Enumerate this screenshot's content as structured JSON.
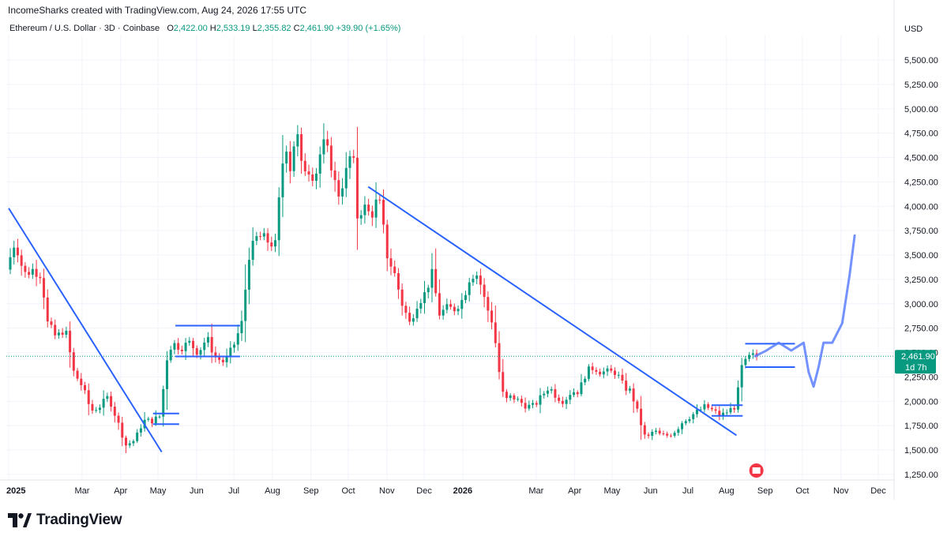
{
  "header": {
    "attribution": "IncomeSharks created with TradingView.com, Aug 24, 2026 17:55 UTC"
  },
  "legend": {
    "symbol": "Ethereum / U.S. Dollar · 3D · Coinbase",
    "o_label": "O",
    "o_value": "2,422.00",
    "h_label": "H",
    "h_value": "2,533.19",
    "l_label": "L",
    "l_value": "2,355.82",
    "c_label": "C",
    "c_value": "2,461.90",
    "change": "+39.90 (+1.65%)"
  },
  "price_axis": {
    "currency": "USD",
    "last_price": "2,461.90",
    "countdown": "1d 7h"
  },
  "footer": {
    "brand": "TradingView"
  },
  "colors": {
    "up": "#089981",
    "down": "#f23645",
    "drawing": "#2962ff",
    "grid": "#f0f3fa",
    "text": "#131722"
  },
  "chart_data": {
    "type": "candlestick",
    "symbol": "ETHUSD",
    "interval": "3D",
    "y_ticks": [
      1250,
      1500,
      1750,
      2000,
      2250,
      2500,
      2750,
      3000,
      3250,
      3500,
      3750,
      4000,
      4250,
      4500,
      4750,
      5000,
      5250,
      5500
    ],
    "y_tick_labels": [
      "1,250.00",
      "1,500.00",
      "1,750.00",
      "2,000.00",
      "2,250.00",
      "2,500.00",
      "2,750.00",
      "3,000.00",
      "3,250.00",
      "3,500.00",
      "3,750.00",
      "4,000.00",
      "4,250.00",
      "4,500.00",
      "4,750.00",
      "5,000.00",
      "5,250.00",
      "5,500.00"
    ],
    "x_ticks": [
      {
        "label": "2025",
        "date": "2025-01-01",
        "bold": true
      },
      {
        "label": "Mar",
        "date": "2025-03-01"
      },
      {
        "label": "Apr",
        "date": "2025-04-01"
      },
      {
        "label": "May",
        "date": "2025-05-01"
      },
      {
        "label": "Jun",
        "date": "2025-06-01"
      },
      {
        "label": "Jul",
        "date": "2025-07-01"
      },
      {
        "label": "Aug",
        "date": "2025-08-01"
      },
      {
        "label": "Sep",
        "date": "2025-09-01"
      },
      {
        "label": "Oct",
        "date": "2025-10-01"
      },
      {
        "label": "Nov",
        "date": "2025-11-01"
      },
      {
        "label": "Dec",
        "date": "2025-12-01"
      },
      {
        "label": "2026",
        "date": "2026-01-01",
        "bold": true
      },
      {
        "label": "Mar",
        "date": "2026-03-01"
      },
      {
        "label": "Apr",
        "date": "2026-04-01"
      },
      {
        "label": "May",
        "date": "2026-05-01"
      },
      {
        "label": "Jun",
        "date": "2026-06-01"
      },
      {
        "label": "Jul",
        "date": "2026-07-01"
      },
      {
        "label": "Aug",
        "date": "2026-08-01"
      },
      {
        "label": "Sep",
        "date": "2026-09-01"
      },
      {
        "label": "Oct",
        "date": "2026-10-01"
      },
      {
        "label": "Nov",
        "date": "2026-11-01"
      },
      {
        "label": "Dec",
        "date": "2026-12-01"
      }
    ],
    "price_path": [
      [
        "2025-01-01",
        3350
      ],
      [
        "2025-01-08",
        3650
      ],
      [
        "2025-01-15",
        3300
      ],
      [
        "2025-01-22",
        3350
      ],
      [
        "2025-01-29",
        3300
      ],
      [
        "2025-02-03",
        2800
      ],
      [
        "2025-02-10",
        2650
      ],
      [
        "2025-02-17",
        2750
      ],
      [
        "2025-02-24",
        2300
      ],
      [
        "2025-03-03",
        2150
      ],
      [
        "2025-03-10",
        1900
      ],
      [
        "2025-03-17",
        1950
      ],
      [
        "2025-03-24",
        2050
      ],
      [
        "2025-03-31",
        1800
      ],
      [
        "2025-04-07",
        1550
      ],
      [
        "2025-04-14",
        1600
      ],
      [
        "2025-04-21",
        1800
      ],
      [
        "2025-04-28",
        1800
      ],
      [
        "2025-05-05",
        1850
      ],
      [
        "2025-05-09",
        2400
      ],
      [
        "2025-05-14",
        2600
      ],
      [
        "2025-05-21",
        2550
      ],
      [
        "2025-05-28",
        2600
      ],
      [
        "2025-06-04",
        2500
      ],
      [
        "2025-06-11",
        2650
      ],
      [
        "2025-06-18",
        2450
      ],
      [
        "2025-06-25",
        2400
      ],
      [
        "2025-07-02",
        2550
      ],
      [
        "2025-07-09",
        2800
      ],
      [
        "2025-07-15",
        3500
      ],
      [
        "2025-07-22",
        3700
      ],
      [
        "2025-07-29",
        3650
      ],
      [
        "2025-08-05",
        3600
      ],
      [
        "2025-08-09",
        4200
      ],
      [
        "2025-08-13",
        4700
      ],
      [
        "2025-08-17",
        4400
      ],
      [
        "2025-08-22",
        4800
      ],
      [
        "2025-08-26",
        4400
      ],
      [
        "2025-08-31",
        4400
      ],
      [
        "2025-09-06",
        4300
      ],
      [
        "2025-09-12",
        4650
      ],
      [
        "2025-09-18",
        4500
      ],
      [
        "2025-09-24",
        4100
      ],
      [
        "2025-09-30",
        4300
      ],
      [
        "2025-10-06",
        4600
      ],
      [
        "2025-10-10",
        3900
      ],
      [
        "2025-10-15",
        4000
      ],
      [
        "2025-10-21",
        3900
      ],
      [
        "2025-10-27",
        4100
      ],
      [
        "2025-11-03",
        3500
      ],
      [
        "2025-11-09",
        3300
      ],
      [
        "2025-11-15",
        3000
      ],
      [
        "2025-11-21",
        2800
      ],
      [
        "2025-11-27",
        3000
      ],
      [
        "2025-12-03",
        3100
      ],
      [
        "2025-12-09",
        3300
      ],
      [
        "2025-12-15",
        2900
      ],
      [
        "2025-12-21",
        2950
      ],
      [
        "2025-12-27",
        2950
      ],
      [
        "2026-01-03",
        3050
      ],
      [
        "2026-01-09",
        3300
      ],
      [
        "2026-01-15",
        3300
      ],
      [
        "2026-01-21",
        3000
      ],
      [
        "2026-01-27",
        2800
      ],
      [
        "2026-02-01",
        2300
      ],
      [
        "2026-02-05",
        2000
      ],
      [
        "2026-02-11",
        2050
      ],
      [
        "2026-02-17",
        2000
      ],
      [
        "2026-02-23",
        1950
      ],
      [
        "2026-03-01",
        1950
      ],
      [
        "2026-03-07",
        2050
      ],
      [
        "2026-03-13",
        2150
      ],
      [
        "2026-03-19",
        2050
      ],
      [
        "2026-03-25",
        2000
      ],
      [
        "2026-03-31",
        2100
      ],
      [
        "2026-04-06",
        2100
      ],
      [
        "2026-04-12",
        2300
      ],
      [
        "2026-04-18",
        2350
      ],
      [
        "2026-04-24",
        2300
      ],
      [
        "2026-04-30",
        2300
      ],
      [
        "2026-05-06",
        2300
      ],
      [
        "2026-05-12",
        2150
      ],
      [
        "2026-05-18",
        2100
      ],
      [
        "2026-05-24",
        1850
      ],
      [
        "2026-05-30",
        1600
      ],
      [
        "2026-06-05",
        1700
      ],
      [
        "2026-06-11",
        1650
      ],
      [
        "2026-06-17",
        1650
      ],
      [
        "2026-06-23",
        1700
      ],
      [
        "2026-06-29",
        1800
      ],
      [
        "2026-07-05",
        1850
      ],
      [
        "2026-07-11",
        1900
      ],
      [
        "2026-07-17",
        1950
      ],
      [
        "2026-07-23",
        1900
      ],
      [
        "2026-07-29",
        1850
      ],
      [
        "2026-08-04",
        1900
      ],
      [
        "2026-08-10",
        1950
      ],
      [
        "2026-08-15",
        2350
      ],
      [
        "2026-08-21",
        2450
      ],
      [
        "2026-08-24",
        2462
      ]
    ]
  },
  "drawings": {
    "trendlines": [
      {
        "from": [
          "2025-01-01",
          3980
        ],
        "to": [
          "2025-05-04",
          1480
        ]
      },
      {
        "from": [
          "2025-10-17",
          4200
        ],
        "to": [
          "2026-08-09",
          1650
        ]
      }
    ],
    "boxes": [
      {
        "from": [
          "2025-04-27",
          1765
        ],
        "to": [
          "2025-05-18",
          1875
        ]
      },
      {
        "from": [
          "2025-05-15",
          2460
        ],
        "to": [
          "2025-07-06",
          2775
        ]
      },
      {
        "from": [
          "2026-07-20",
          1850
        ],
        "to": [
          "2026-08-14",
          1960
        ]
      },
      {
        "from": [
          "2026-08-16",
          2350
        ],
        "to": [
          "2026-09-25",
          2590
        ]
      }
    ],
    "projection": [
      [
        "2026-08-24",
        2462
      ],
      [
        "2026-09-02",
        2520
      ],
      [
        "2026-09-12",
        2600
      ],
      [
        "2026-09-22",
        2520
      ],
      [
        "2026-10-02",
        2600
      ],
      [
        "2026-10-06",
        2300
      ],
      [
        "2026-10-10",
        2150
      ],
      [
        "2026-10-14",
        2350
      ],
      [
        "2026-10-18",
        2600
      ],
      [
        "2026-10-25",
        2600
      ],
      [
        "2026-11-02",
        2800
      ],
      [
        "2026-11-08",
        3300
      ],
      [
        "2026-11-12",
        3700
      ]
    ]
  }
}
